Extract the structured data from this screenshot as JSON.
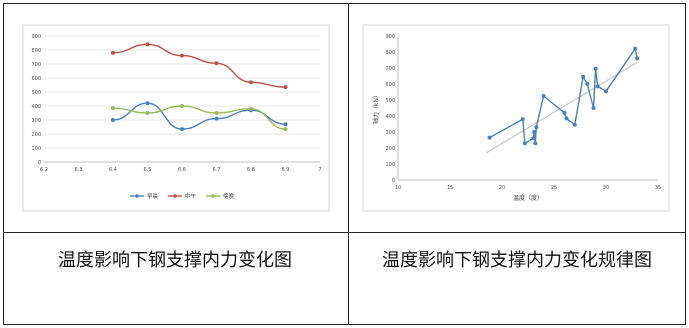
{
  "chart_data": [
    {
      "type": "line",
      "x": [
        6.4,
        6.5,
        6.6,
        6.7,
        6.8,
        6.9
      ],
      "xlim": [
        6.2,
        7
      ],
      "x_ticks": [
        "6.2",
        "6.3",
        "6.4",
        "6.5",
        "6.6",
        "6.7",
        "6.8",
        "6.9",
        "7"
      ],
      "ylim": [
        0,
        900
      ],
      "y_ticks": [
        "0",
        "100",
        "200",
        "300",
        "400",
        "500",
        "600",
        "700",
        "800",
        "900"
      ],
      "grid": true,
      "legend": "bottom",
      "series": [
        {
          "name": "早晨",
          "color": "#4e81bd",
          "values": [
            300,
            420,
            235,
            310,
            370,
            270
          ]
        },
        {
          "name": "中午",
          "color": "#c0504d",
          "values": [
            780,
            840,
            760,
            705,
            570,
            535
          ]
        },
        {
          "name": "傍晚",
          "color": "#9bbb59",
          "values": [
            385,
            350,
            400,
            350,
            380,
            235
          ]
        }
      ]
    },
    {
      "type": "scatter",
      "xlabel": "温度（度）",
      "ylabel": "轴力（kN）",
      "xlim": [
        10,
        35
      ],
      "x_ticks": [
        "10",
        "15",
        "20",
        "25",
        "30",
        "35"
      ],
      "ylim": [
        0,
        900
      ],
      "y_ticks": [
        "0",
        "100",
        "200",
        "300",
        "400",
        "500",
        "600",
        "700",
        "800",
        "900"
      ],
      "grid": false,
      "series": [
        {
          "color": "#4e81bd",
          "x": [
            18.8,
            22,
            22.2,
            23,
            23.1,
            23.2,
            23.3,
            24,
            26,
            26.2,
            27,
            27.8,
            28.2,
            28.8,
            29,
            29.2,
            30,
            32.8,
            33
          ],
          "y": [
            265,
            380,
            230,
            260,
            300,
            230,
            330,
            525,
            420,
            385,
            345,
            645,
            600,
            450,
            695,
            585,
            555,
            820,
            760
          ]
        }
      ],
      "trendline": {
        "color": "#c8c8c8",
        "x": [
          18.5,
          33
        ],
        "y": [
          170,
          735
        ]
      }
    }
  ],
  "captions": {
    "left": "温度影响下钢支撑内力变化图",
    "right": "温度影响下钢支撑内力变化规律图"
  }
}
